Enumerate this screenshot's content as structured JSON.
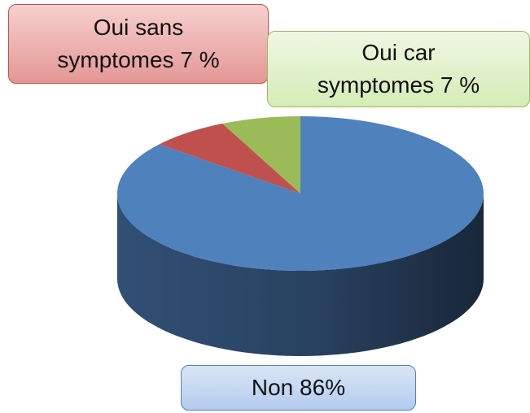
{
  "chart_data": {
    "type": "pie3d",
    "categories": [
      "Non",
      "Oui sans symptomes",
      "Oui car symptomes"
    ],
    "values": [
      86,
      7,
      7
    ],
    "value_labels": [
      "86%",
      "7 %",
      "7 %"
    ],
    "colors": [
      "#4f81bd",
      "#c0504d",
      "#9bbb59"
    ]
  }
}
